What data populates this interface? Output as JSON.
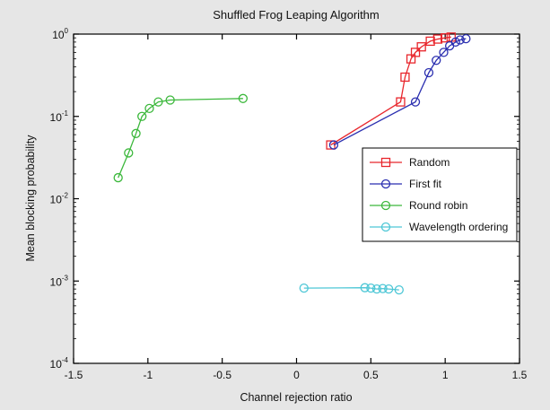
{
  "chart_data": {
    "type": "scatter",
    "title": "Shuffled Frog Leaping Algorithm",
    "xlabel": "Channel rejection ratio",
    "ylabel": "Mean blocking probability",
    "xlim": [
      -1.5,
      1.5
    ],
    "ylim": [
      0.0001,
      1
    ],
    "yscale": "log",
    "grid": false,
    "legend_position": "right",
    "x_ticks": [
      -1.5,
      -1,
      -0.5,
      0,
      0.5,
      1,
      1.5
    ],
    "x_tick_labels": [
      "-1.5",
      "-1",
      "-0.5",
      "0",
      "0.5",
      "1",
      "1.5"
    ],
    "y_ticks": [
      {
        "value": 0.0001,
        "base": "10",
        "exp": "-4"
      },
      {
        "value": 0.001,
        "base": "10",
        "exp": "-3"
      },
      {
        "value": 0.01,
        "base": "10",
        "exp": "-2"
      },
      {
        "value": 0.1,
        "base": "10",
        "exp": "-1"
      },
      {
        "value": 1,
        "base": "10",
        "exp": "0"
      }
    ],
    "series": [
      {
        "name": "Random",
        "color": "#e8262c",
        "marker": "square",
        "x": [
          0.23,
          0.7,
          0.73,
          0.77,
          0.8,
          0.84,
          0.9,
          0.95,
          1.0,
          1.04
        ],
        "y": [
          0.045,
          0.15,
          0.3,
          0.5,
          0.6,
          0.7,
          0.82,
          0.87,
          0.9,
          0.92
        ]
      },
      {
        "name": "First fit",
        "color": "#2b2fb0",
        "marker": "circle",
        "x": [
          0.25,
          0.8,
          0.89,
          0.94,
          0.99,
          1.03,
          1.07,
          1.1,
          1.14
        ],
        "y": [
          0.045,
          0.15,
          0.34,
          0.48,
          0.6,
          0.72,
          0.8,
          0.85,
          0.88
        ]
      },
      {
        "name": "Round robin",
        "color": "#3cb83c",
        "marker": "circle",
        "x": [
          -1.2,
          -1.13,
          -1.08,
          -1.04,
          -0.99,
          -0.93,
          -0.85,
          -0.36
        ],
        "y": [
          0.018,
          0.036,
          0.062,
          0.1,
          0.125,
          0.15,
          0.158,
          0.165
        ]
      },
      {
        "name": "Wavelength ordering",
        "color": "#4ec7d6",
        "marker": "circle",
        "x": [
          0.05,
          0.46,
          0.5,
          0.54,
          0.58,
          0.62,
          0.69
        ],
        "y": [
          0.00082,
          0.00083,
          0.00082,
          0.0008,
          0.00081,
          0.0008,
          0.00078
        ]
      }
    ]
  }
}
